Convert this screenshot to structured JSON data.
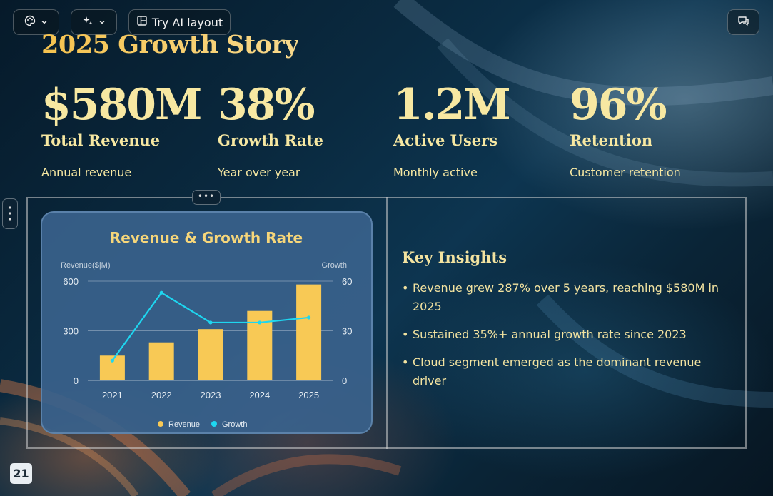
{
  "toolbar": {
    "ai_layout_label": "Try AI layout"
  },
  "slide": {
    "title": "2025 Growth Story",
    "stats": [
      {
        "value": "$580M",
        "label": "Total Revenue",
        "desc": "Annual revenue"
      },
      {
        "value": "38%",
        "label": "Growth Rate",
        "desc": "Year over year"
      },
      {
        "value": "1.2M",
        "label": "Active Users",
        "desc": "Monthly active"
      },
      {
        "value": "96%",
        "label": "Retention",
        "desc": "Customer retention"
      }
    ],
    "insights": {
      "title": "Key Insights",
      "items": [
        "Revenue grew 287% over 5 years, reaching $580M in 2025",
        "Sustained 35%+ annual growth rate since 2023",
        "Cloud segment emerged as the dominant revenue driver"
      ]
    },
    "page_number": "21"
  },
  "colors": {
    "accent_gold": "#f7e8a2",
    "bar": "#f8c955",
    "line": "#1ed6f0",
    "card": "#3a628c"
  },
  "chart_data": {
    "type": "bar",
    "title": "Revenue & Growth Rate",
    "categories": [
      "2021",
      "2022",
      "2023",
      "2024",
      "2025"
    ],
    "y_left_label": "Revenue($|M)",
    "y_right_label": "Growth",
    "y_left_ticks": [
      "0",
      "300",
      "600"
    ],
    "y_right_ticks": [
      "0",
      "30",
      "60"
    ],
    "ylim": [
      0,
      600
    ],
    "y2lim": [
      0,
      60
    ],
    "grid": true,
    "legend_position": "bottom",
    "series": [
      {
        "name": "Revenue",
        "type": "bar",
        "values": [
          150,
          230,
          310,
          420,
          580
        ]
      },
      {
        "name": "Growth",
        "type": "line",
        "values": [
          12,
          53,
          35,
          35,
          38
        ]
      }
    ]
  }
}
